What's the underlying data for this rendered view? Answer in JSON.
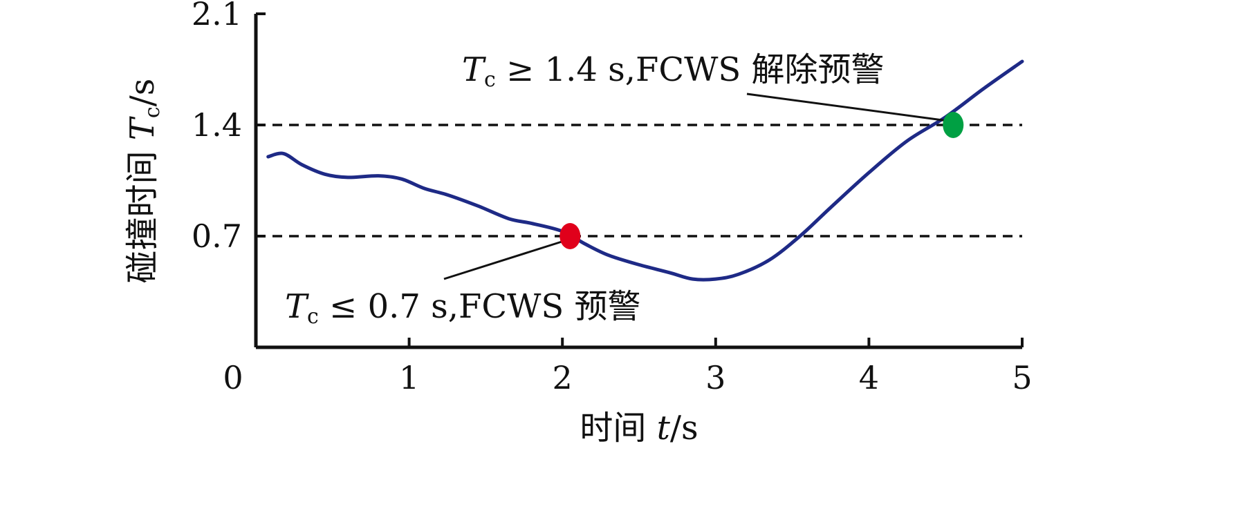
{
  "chart_data": {
    "type": "line",
    "xlabel": "时间 t/s",
    "ylabel": "碰撞时间 Tc/s",
    "xlim": [
      0,
      5
    ],
    "ylim": [
      0,
      2.1
    ],
    "x_ticks": [
      "0",
      "1",
      "2",
      "3",
      "4",
      "5"
    ],
    "y_ticks": [
      "0.7",
      "1.4",
      "2.1"
    ],
    "grid": false,
    "series": [
      {
        "color": "#1e2a86",
        "x": [
          0.08,
          0.18,
          0.3,
          0.45,
          0.6,
          0.8,
          0.95,
          1.1,
          1.25,
          1.45,
          1.65,
          1.8,
          2.0,
          2.15,
          2.3,
          2.5,
          2.7,
          2.85,
          3.0,
          3.15,
          3.35,
          3.55,
          3.75,
          4.0,
          4.25,
          4.5,
          4.75,
          5.0
        ],
        "y": [
          1.2,
          1.22,
          1.15,
          1.09,
          1.07,
          1.08,
          1.06,
          1.0,
          0.96,
          0.89,
          0.81,
          0.78,
          0.73,
          0.65,
          0.58,
          0.52,
          0.47,
          0.43,
          0.43,
          0.46,
          0.55,
          0.7,
          0.88,
          1.1,
          1.3,
          1.45,
          1.63,
          1.8
        ]
      }
    ],
    "reference_lines": [
      {
        "y": 1.4,
        "style": "dashed"
      },
      {
        "y": 0.7,
        "style": "dashed"
      }
    ],
    "markers": [
      {
        "x": 2.05,
        "y": 0.7,
        "color": "#e0001b"
      },
      {
        "x": 4.55,
        "y": 1.4,
        "color": "#00a043"
      }
    ],
    "annotations": [
      {
        "prefix": "T",
        "sub": "c",
        "text": " ≥ 1.4 s,FCWS 解除预警"
      },
      {
        "prefix": "T",
        "sub": "c",
        "text": " ≤ 0.7 s,FCWS 预警"
      }
    ]
  }
}
